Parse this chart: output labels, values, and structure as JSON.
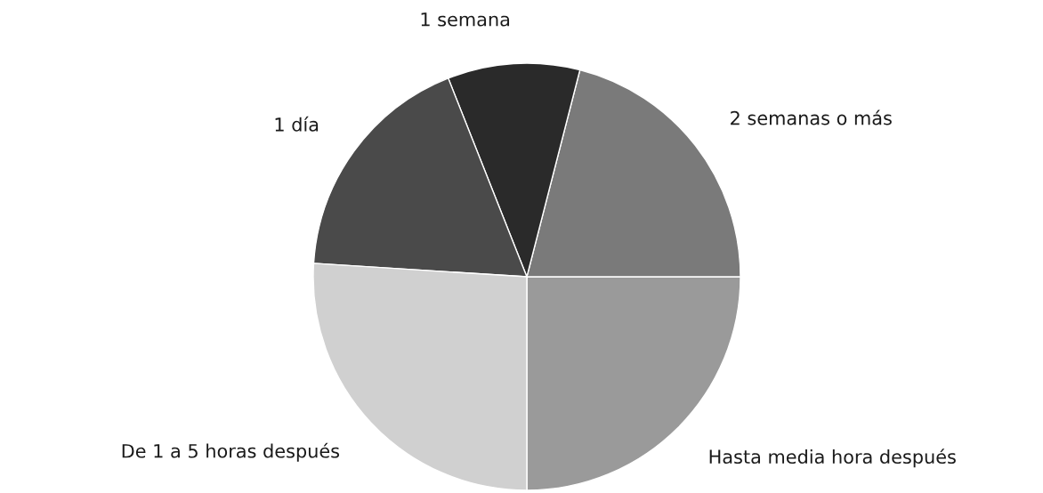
{
  "chart_data": {
    "type": "pie",
    "categories": [
      "Hasta media hora después",
      "2 semanas o más",
      "1 semana",
      "1 día",
      "De 1 a 5 horas después"
    ],
    "values": [
      25,
      21,
      10,
      18,
      26
    ],
    "colors": [
      "#9a9a9a",
      "#7a7a7a",
      "#2a2a2a",
      "#4a4a4a",
      "#d0d0d0"
    ],
    "legend": false
  }
}
